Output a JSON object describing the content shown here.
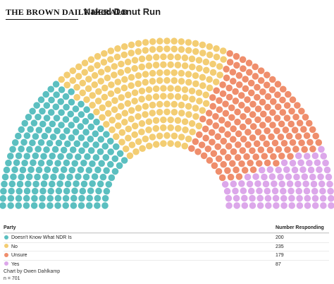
{
  "header": {
    "logo_text": "THE BROWN DAILY HERALD",
    "title": "Naked Donut Run"
  },
  "chart_data": {
    "type": "parliament",
    "title": "Naked Donut Run",
    "total": 701,
    "series": [
      {
        "name": "Doesn't Know What NDR Is",
        "value": 200,
        "color": "#5bbfc0"
      },
      {
        "name": "No",
        "value": 235,
        "color": "#f3cd73"
      },
      {
        "name": "Unsure",
        "value": 179,
        "color": "#ef8e6c"
      },
      {
        "name": "Yes",
        "value": 87,
        "color": "#dca7ea"
      }
    ]
  },
  "table": {
    "col_party": "Party",
    "col_number": "Number Responding",
    "rows": [
      {
        "party": "Doesn't Know What NDR Is",
        "number": "200",
        "color": "#5bbfc0"
      },
      {
        "party": "No",
        "number": "235",
        "color": "#f3cd73"
      },
      {
        "party": "Unsure",
        "number": "179",
        "color": "#ef8e6c"
      },
      {
        "party": "Yes",
        "number": "87",
        "color": "#dca7ea"
      }
    ]
  },
  "footer": {
    "credit": "Chart by Owen Dahlkamp",
    "n": "n = 701"
  }
}
